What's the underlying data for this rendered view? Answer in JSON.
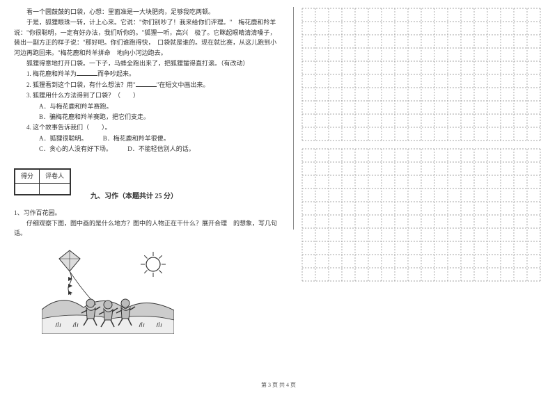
{
  "passage": {
    "p1": "看一个圆鼓鼓的口袋，心想：里面准是一大块肥肉，足够我吃两顿。",
    "p2": "于是，狐狸眼珠一转，计上心来。它说：\"你们别吵了！我来给你们评理。\"　梅花鹿和羚羊说：\"你很聪明，一定有好办法，我们听你的。\"狐狸一听，高兴　极了。它眯起眼睛清清嗓子，装出一副方正的样子说：\"那好吧。你们谁跑得快，　口袋就是谁的。现在就比赛，从这儿跑到小河边再跑回来。\"梅花鹿和羚羊拼命　地向小河边跑去。",
    "p3": "狐狸得意地打开口袋。一下子，马蜂全跑出来了，把狐狸蜇得直打滚。（有改动）"
  },
  "questions": {
    "q1": {
      "num": "1.",
      "text_a": "梅花鹿和羚羊为",
      "text_b": "而争吵起来。"
    },
    "q2": {
      "num": "2.",
      "text_a": "狐狸看到这个口袋，有什么想法？用\"",
      "text_b": "\"在短文中画出来。"
    },
    "q3": {
      "num": "3.",
      "text": "狐狸用什么方法得到了口袋？（　　）",
      "optA": "A．与梅花鹿和羚羊赛跑。",
      "optB": "B．骗梅花鹿和羚羊赛跑，把它们支走。"
    },
    "q4": {
      "num": "4.",
      "text": "这个故事告诉我们（　　）。",
      "optA": "A．狐狸很聪明。",
      "optB": "B．梅花鹿和羚羊很傻。",
      "optC": "C．贪心的人没有好下场。",
      "optD": "D．不能轻信别人的话。"
    }
  },
  "section9": {
    "score_h1": "得分",
    "score_h2": "评卷人",
    "title": "九、习作（本题共计 25 分）",
    "q_num": "1、",
    "q_title": "习作百花园。",
    "instr": "仔细观察下图，图中画的是什么地方？图中的人物正在干什么？展开合理　的想象，写几句话。"
  },
  "grid": {
    "rows": 10,
    "cols": 18,
    "cell": 19,
    "pad": 2,
    "stroke": "#888888",
    "dash": "2,2",
    "bg": "#ffffff"
  },
  "illus": {
    "w": 190,
    "h": 130,
    "sky": "#ffffff",
    "line": "#333333",
    "sun_fill": "#ffffff",
    "kite_fill": "#dddddd",
    "child_fill": "#bbbbbb",
    "hill_fill": "#cccccc",
    "grass_fill": "#eeeeee"
  },
  "footer": "第 3 页  共 4 页"
}
